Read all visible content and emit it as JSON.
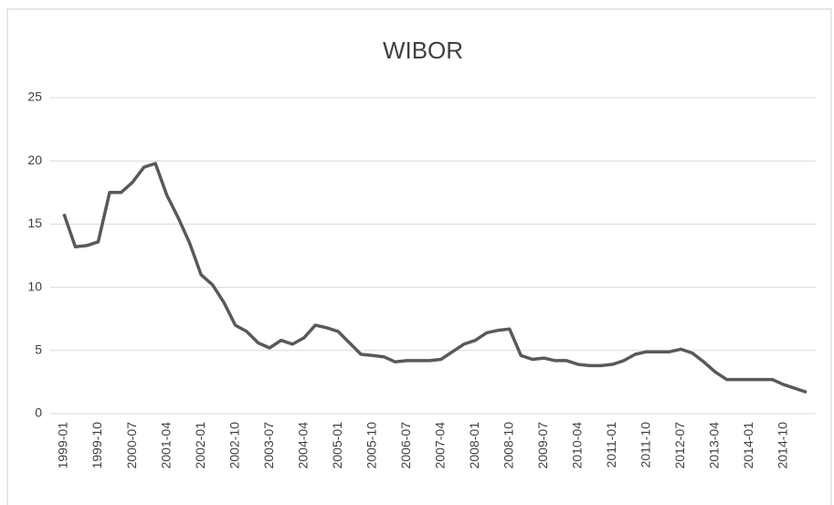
{
  "chart_data": {
    "type": "line",
    "title": "WIBOR",
    "categories": [
      "1999-01",
      null,
      null,
      "1999-10",
      null,
      null,
      "2000-07",
      null,
      null,
      "2001-04",
      null,
      null,
      "2002-01",
      null,
      null,
      "2002-10",
      null,
      null,
      "2003-07",
      null,
      null,
      "2004-04",
      null,
      null,
      "2005-01",
      null,
      null,
      "2005-10",
      null,
      null,
      "2006-07",
      null,
      null,
      "2007-04",
      null,
      null,
      "2008-01",
      null,
      null,
      "2008-10",
      null,
      null,
      "2009-07",
      null,
      null,
      "2010-04",
      null,
      null,
      "2011-01",
      null,
      null,
      "2011-10",
      null,
      null,
      "2012-07",
      null,
      null,
      "2013-04",
      null,
      null,
      "2014-01",
      null,
      null,
      "2014-10",
      null,
      null
    ],
    "values": [
      15.8,
      13.2,
      13.3,
      13.6,
      17.5,
      17.5,
      18.3,
      19.5,
      19.8,
      17.3,
      15.5,
      13.5,
      11.0,
      10.2,
      8.8,
      7.0,
      6.5,
      5.6,
      5.2,
      5.8,
      5.5,
      6.0,
      7.0,
      6.8,
      6.5,
      5.6,
      4.7,
      4.6,
      4.5,
      4.1,
      4.2,
      4.2,
      4.2,
      4.3,
      4.9,
      5.5,
      5.8,
      6.4,
      6.6,
      6.7,
      4.6,
      4.3,
      4.4,
      4.2,
      4.2,
      3.9,
      3.8,
      3.8,
      3.9,
      4.2,
      4.7,
      4.9,
      4.9,
      4.9,
      5.1,
      4.8,
      4.1,
      3.3,
      2.7,
      2.7,
      2.7,
      2.7,
      2.7,
      2.3,
      2.0,
      1.7
    ],
    "color": "#595959",
    "ylim": [
      0,
      25
    ],
    "yticks": [
      0,
      5,
      10,
      15,
      20,
      25
    ],
    "grid": true
  }
}
